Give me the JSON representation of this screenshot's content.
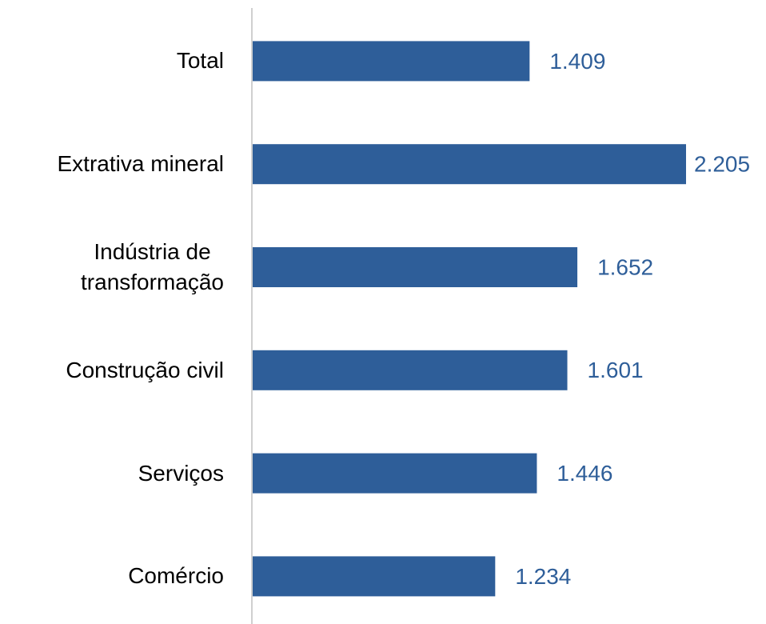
{
  "chart_data": {
    "type": "barh",
    "categories": [
      "Total",
      "Extrativa mineral",
      "Indústria de\ntransformação",
      "Construção civil",
      "Serviços",
      "Comércio"
    ],
    "values": [
      1409,
      2205,
      1652,
      1601,
      1446,
      1234
    ],
    "value_labels": [
      "1.409",
      "2.205",
      "1.652",
      "1.601",
      "1.446",
      "1.234"
    ],
    "color": "#2e5e99"
  }
}
